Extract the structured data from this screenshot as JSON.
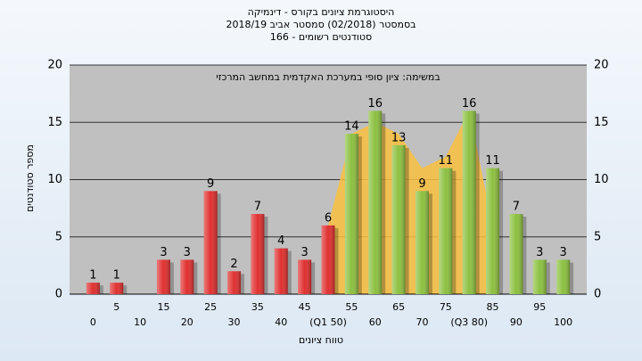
{
  "chart_data": {
    "type": "bar",
    "title": [
      "היסטוגרמת ציונים בקורס - דינמיקה",
      "בסמסטר  (02/2018)  סמסטר אביב 2018/19",
      "סטודנטים רשומים - 166"
    ],
    "annotation": "במשימה: ציון סופי במערכת האקדמית במחשב המרכזי",
    "x_label": "טווח ציונים",
    "y_label": "מספר סטודנטים",
    "categories": [
      "0",
      "5",
      "10",
      "15",
      "20",
      "25",
      "30",
      "35",
      "40",
      "45",
      "(Q1 50)",
      "55",
      "60",
      "65",
      "70",
      "75",
      "(Q3 80)",
      "85",
      "90",
      "95",
      "100"
    ],
    "values": [
      1,
      1,
      null,
      3,
      3,
      9,
      2,
      7,
      4,
      3,
      6,
      14,
      16,
      13,
      9,
      11,
      16,
      11,
      7,
      3,
      3
    ],
    "colors": [
      "#e03030",
      "#e03030",
      "#e03030",
      "#e03030",
      "#e03030",
      "#e03030",
      "#e03030",
      "#e03030",
      "#e03030",
      "#e03030",
      "#e03030",
      "#8cc040",
      "#8cc040",
      "#8cc040",
      "#8cc040",
      "#8cc040",
      "#8cc040",
      "#8cc040",
      "#8cc040",
      "#8cc040",
      "#8cc040"
    ],
    "area": {
      "color": "#f8c040",
      "values": [
        null,
        null,
        null,
        null,
        null,
        null,
        null,
        null,
        null,
        null,
        6,
        14,
        15,
        14,
        11,
        12,
        16,
        6,
        null,
        null,
        null
      ]
    },
    "ylim": [
      0,
      20
    ],
    "yticks": [
      0,
      5,
      10,
      15,
      20
    ],
    "grid": true
  }
}
